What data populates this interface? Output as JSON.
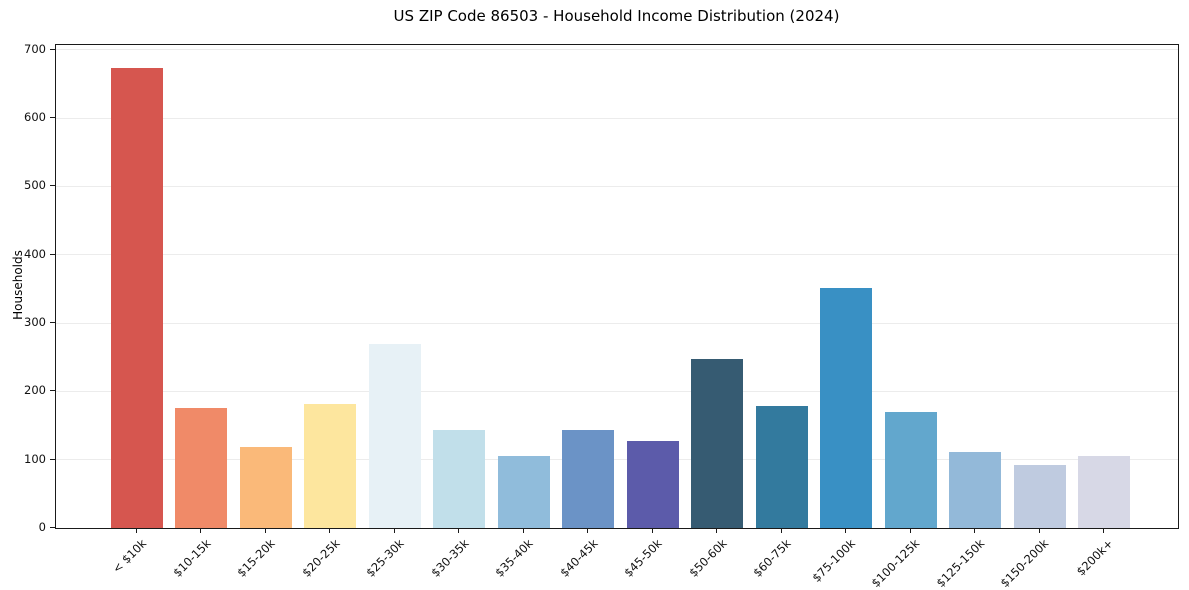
{
  "chart_data": {
    "type": "bar",
    "title": "US ZIP Code 86503 - Household Income Distribution (2024)",
    "xlabel": "",
    "ylabel": "Households",
    "categories": [
      "< $10k",
      "$10-15k",
      "$15-20k",
      "$20-25k",
      "$25-30k",
      "$30-35k",
      "$35-40k",
      "$40-45k",
      "$45-50k",
      "$50-60k",
      "$60-75k",
      "$75-100k",
      "$100-125k",
      "$125-150k",
      "$150-200k",
      "$200k+"
    ],
    "values": [
      673,
      175,
      119,
      181,
      269,
      143,
      106,
      143,
      127,
      247,
      178,
      351,
      170,
      111,
      92,
      105
    ],
    "bar_colors": [
      "#d6564f",
      "#f08a68",
      "#fab979",
      "#fde69e",
      "#e7f1f6",
      "#c1dfea",
      "#90bcdb",
      "#6b93c6",
      "#5c5baa",
      "#365b72",
      "#337a9e",
      "#3990c4",
      "#62a7cd",
      "#93b9d9",
      "#bfcbe0",
      "#d7d8e6"
    ],
    "yticks": [
      0,
      100,
      200,
      300,
      400,
      500,
      600,
      700
    ],
    "ylim": [
      0,
      707
    ],
    "grid": "horizontal",
    "legend": "none",
    "x_tick_rotation_deg": 45
  },
  "style_colors": {
    "grid_color": "#ececec",
    "spine_color": "#1a1a1a",
    "tick_color": "#1a1a1a",
    "text_color": "#111111",
    "background": "#ffffff"
  }
}
